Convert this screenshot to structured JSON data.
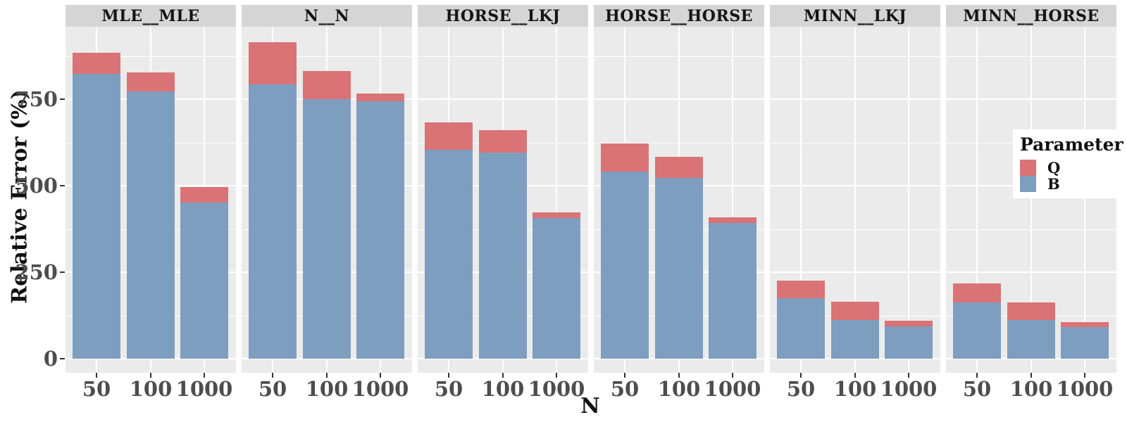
{
  "chart_data": {
    "type": "bar",
    "stacked": true,
    "title": "",
    "xlabel": "N",
    "ylabel": "Relative Error (%)",
    "categories": [
      "50",
      "100",
      "1000"
    ],
    "yticks": [
      0,
      250,
      500,
      750
    ],
    "ylim": [
      0,
      960
    ],
    "grid": true,
    "legend": {
      "title": "Parameter",
      "position": "right",
      "entries": [
        {
          "label": "Q",
          "color": "#D97375"
        },
        {
          "label": "B",
          "color": "#7E9EC0"
        }
      ]
    },
    "facets": [
      {
        "label": "MLE__MLE",
        "series": {
          "B": [
            824,
            772,
            452
          ],
          "Q": [
            61,
            55,
            44
          ]
        }
      },
      {
        "label": "N__N",
        "series": {
          "B": [
            793,
            751,
            745
          ],
          "Q": [
            122,
            80,
            21
          ]
        }
      },
      {
        "label": "HORSE__LKJ",
        "series": {
          "B": [
            604,
            595,
            406
          ],
          "Q": [
            79,
            66,
            16
          ]
        }
      },
      {
        "label": "HORSE__HORSE",
        "series": {
          "B": [
            540,
            522,
            392
          ],
          "Q": [
            82,
            61,
            16
          ]
        }
      },
      {
        "label": "MINN__LKJ",
        "series": {
          "B": [
            175,
            111,
            94
          ],
          "Q": [
            50,
            54,
            15
          ]
        }
      },
      {
        "label": "MINN__HORSE",
        "series": {
          "B": [
            163,
            111,
            91
          ],
          "Q": [
            55,
            51,
            15
          ]
        }
      }
    ]
  },
  "colors": {
    "panel_background": "#EBEBEB",
    "strip_background": "#D5D5D5",
    "gridline": "#FFFFFF",
    "axis_text": "#4D4D4D",
    "bar_q": "#D97375",
    "bar_b": "#7E9EC0"
  }
}
